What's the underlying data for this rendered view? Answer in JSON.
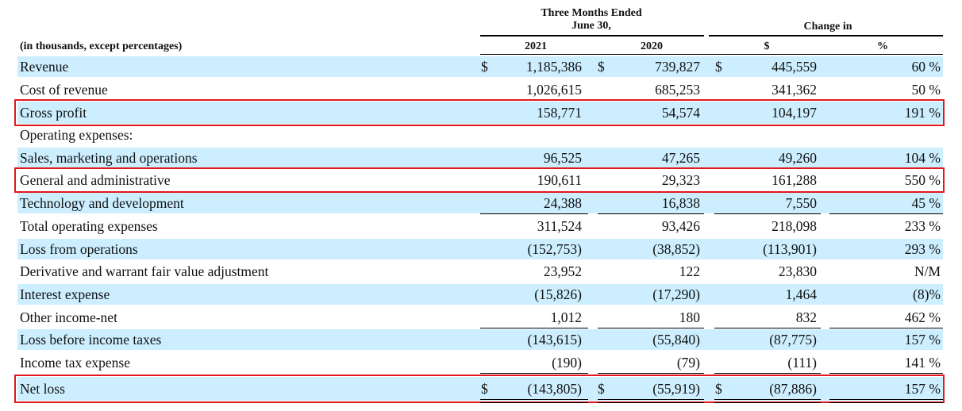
{
  "header": {
    "period_line1": "Three Months Ended",
    "period_line2": "June 30,",
    "change": "Change in",
    "units": "(in thousands, except percentages)",
    "col_2021": "2021",
    "col_2020": "2020",
    "col_dollar": "$",
    "col_pct": "%"
  },
  "currency_symbol": "$",
  "rows": [
    {
      "label": "Revenue",
      "v2021": "1,185,386",
      "v2020": "739,827",
      "chg": "445,559",
      "pct": "60 %"
    },
    {
      "label": "Cost of revenue",
      "v2021": "1,026,615",
      "v2020": "685,253",
      "chg": "341,362",
      "pct": "50 %"
    },
    {
      "label": "Gross profit",
      "v2021": "158,771",
      "v2020": "54,574",
      "chg": "104,197",
      "pct": "191 %"
    },
    {
      "label": "Operating expenses:",
      "v2021": "",
      "v2020": "",
      "chg": "",
      "pct": ""
    },
    {
      "label": "Sales, marketing and operations",
      "v2021": "96,525",
      "v2020": "47,265",
      "chg": "49,260",
      "pct": "104 %"
    },
    {
      "label": "General and administrative",
      "v2021": "190,611",
      "v2020": "29,323",
      "chg": "161,288",
      "pct": "550 %"
    },
    {
      "label": "Technology and development",
      "v2021": "24,388",
      "v2020": "16,838",
      "chg": "7,550",
      "pct": "45 %"
    },
    {
      "label": "Total operating expenses",
      "v2021": "311,524",
      "v2020": "93,426",
      "chg": "218,098",
      "pct": "233 %"
    },
    {
      "label": "Loss from operations",
      "v2021": "(152,753)",
      "v2020": "(38,852)",
      "chg": "(113,901)",
      "pct": "293 %"
    },
    {
      "label": "Derivative and warrant fair value adjustment",
      "v2021": "23,952",
      "v2020": "122",
      "chg": "23,830",
      "pct": "N/M"
    },
    {
      "label": "Interest expense",
      "v2021": "(15,826)",
      "v2020": "(17,290)",
      "chg": "1,464",
      "pct": "(8)%"
    },
    {
      "label": "Other income-net",
      "v2021": "1,012",
      "v2020": "180",
      "chg": "832",
      "pct": "462 %"
    },
    {
      "label": "Loss before income taxes",
      "v2021": "(143,615)",
      "v2020": "(55,840)",
      "chg": "(87,775)",
      "pct": "157 %"
    },
    {
      "label": "Income tax expense",
      "v2021": "(190)",
      "v2020": "(79)",
      "chg": "(111)",
      "pct": "141 %"
    },
    {
      "label": "Net loss",
      "v2021": "(143,805)",
      "v2020": "(55,919)",
      "chg": "(87,886)",
      "pct": "157 %"
    }
  ],
  "highlight_color": "#e0191f",
  "shade_color": "#cceeff"
}
